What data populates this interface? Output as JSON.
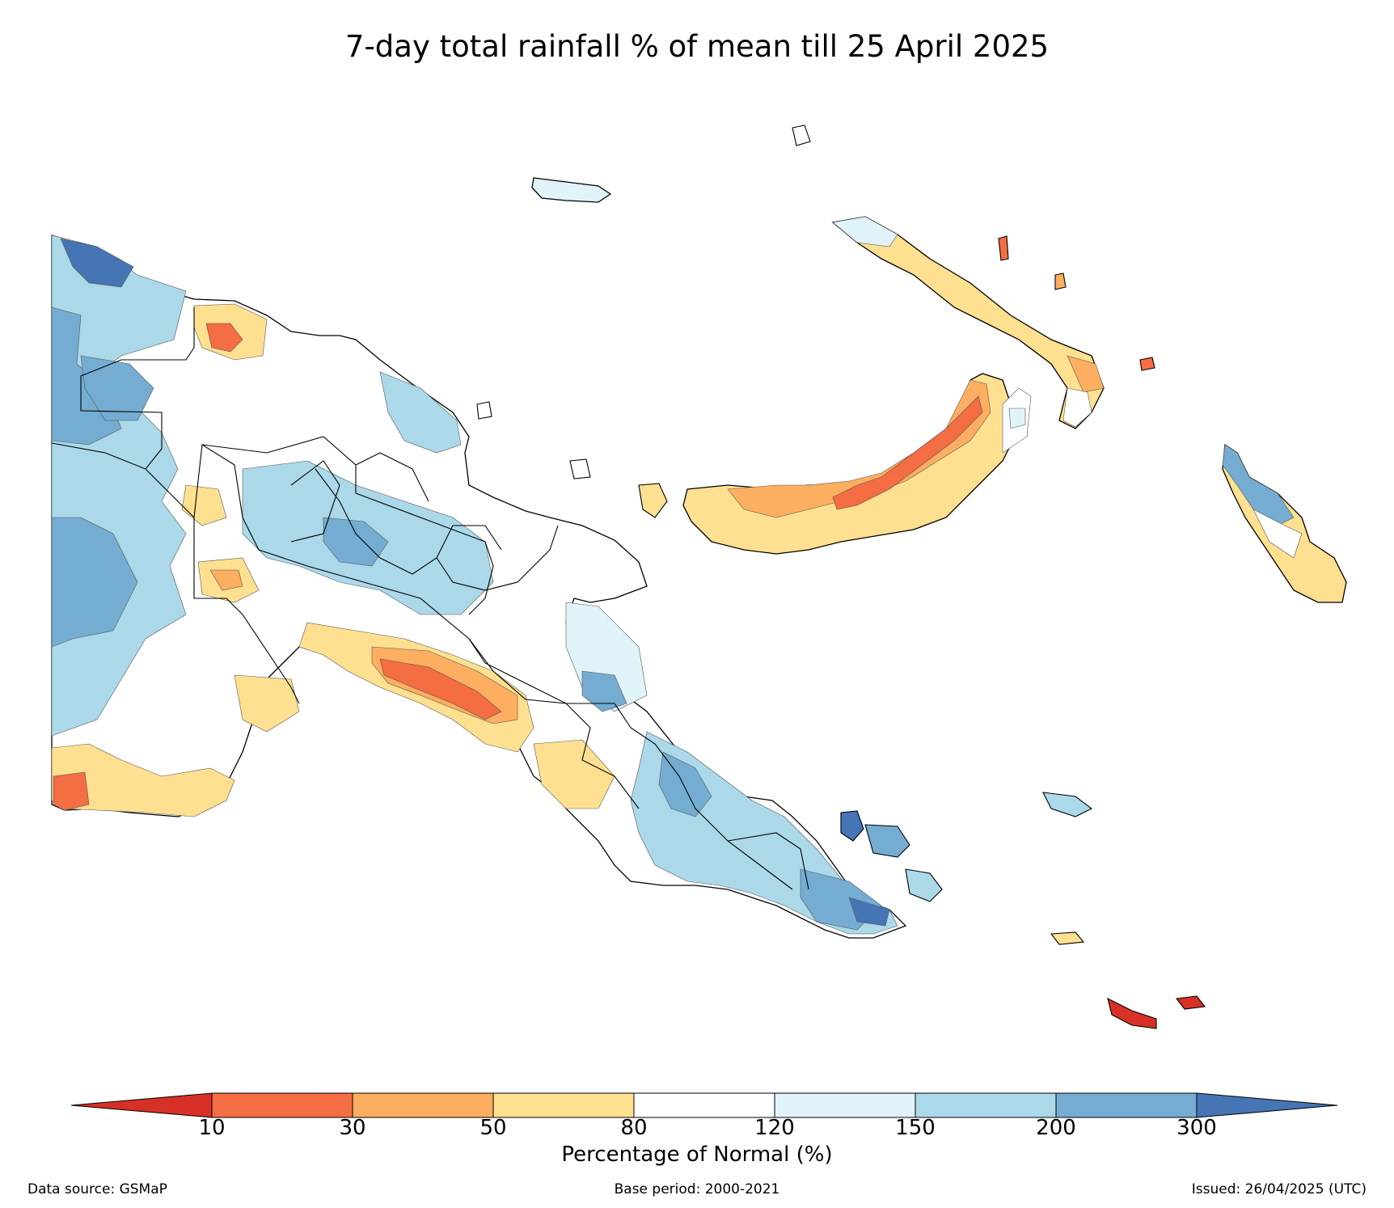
{
  "title": "7-day total rainfall % of mean till 25 April 2025",
  "colorbar": {
    "label": "Percentage of Normal (%)",
    "ticks": [
      "10",
      "30",
      "50",
      "80",
      "120",
      "150",
      "200",
      "300"
    ],
    "colors": [
      "#d73027",
      "#f46d43",
      "#fdae61",
      "#fee090",
      "#ffffff",
      "#e0f3f8",
      "#abd9e9",
      "#74add1",
      "#4575b4"
    ],
    "extend": "both"
  },
  "footer": {
    "source": "Data source: GSMaP",
    "base_period": "Base period: 2000-2021",
    "issued": "Issued: 26/04/2025 (UTC)"
  },
  "legend_levels": [
    {
      "range": "<10",
      "color": "#d73027"
    },
    {
      "range": "10-30",
      "color": "#f46d43"
    },
    {
      "range": "30-50",
      "color": "#fdae61"
    },
    {
      "range": "50-80",
      "color": "#fee090"
    },
    {
      "range": "80-120",
      "color": "#ffffff"
    },
    {
      "range": "120-150",
      "color": "#e0f3f8"
    },
    {
      "range": "150-200",
      "color": "#abd9e9"
    },
    {
      "range": "200-300",
      "color": "#74add1"
    },
    {
      "range": ">300",
      "color": "#4575b4"
    }
  ]
}
